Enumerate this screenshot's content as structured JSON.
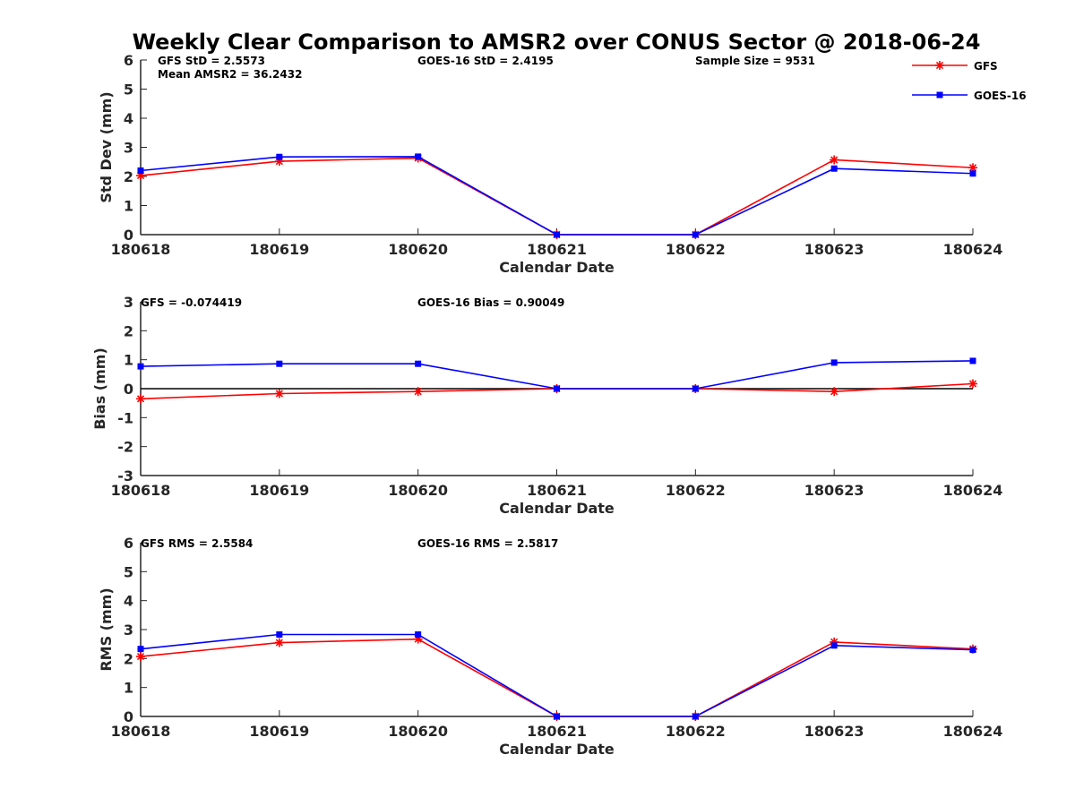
{
  "figure": {
    "title": "Weekly Clear Comparison to AMSR2 over CONUS Sector @ 2018-06-24"
  },
  "legend": {
    "position": "top-right",
    "entries": [
      {
        "label": "GFS",
        "color": "#ff0000",
        "marker": "asterisk"
      },
      {
        "label": "GOES-16",
        "color": "#0000ff",
        "marker": "square"
      }
    ]
  },
  "chart_data": [
    {
      "type": "line",
      "xlabel": "Calendar Date",
      "ylabel": "Std Dev (mm)",
      "ylim": [
        0,
        6
      ],
      "yticks": [
        0,
        1,
        2,
        3,
        4,
        5,
        6
      ],
      "categories": [
        "180618",
        "180619",
        "180620",
        "180621",
        "180622",
        "180623",
        "180624"
      ],
      "series": [
        {
          "name": "GFS",
          "color": "#ff0000",
          "marker": "asterisk",
          "values": [
            2.03,
            2.52,
            2.63,
            0,
            0,
            2.57,
            2.3
          ]
        },
        {
          "name": "GOES-16",
          "color": "#0000ff",
          "marker": "square",
          "values": [
            2.2,
            2.67,
            2.68,
            0,
            0,
            2.27,
            2.1
          ]
        }
      ],
      "annotations": [
        "GFS StD = 2.5573",
        "Mean AMSR2 = 36.2432",
        "GOES-16 StD = 2.4195",
        "Sample Size = 9531"
      ]
    },
    {
      "type": "line",
      "xlabel": "Calendar Date",
      "ylabel": "Bias (mm)",
      "ylim": [
        -3,
        3
      ],
      "yticks": [
        -3,
        -2,
        -1,
        0,
        1,
        2,
        3
      ],
      "zero_line": true,
      "categories": [
        "180618",
        "180619",
        "180620",
        "180621",
        "180622",
        "180623",
        "180624"
      ],
      "series": [
        {
          "name": "GFS",
          "color": "#ff0000",
          "marker": "asterisk",
          "values": [
            -0.35,
            -0.17,
            -0.1,
            0,
            0,
            -0.1,
            0.17
          ]
        },
        {
          "name": "GOES-16",
          "color": "#0000ff",
          "marker": "square",
          "values": [
            0.77,
            0.86,
            0.86,
            0,
            0,
            0.9,
            0.96
          ]
        }
      ],
      "annotations": [
        "GFS = -0.074419",
        "GOES-16 Bias  = 0.90049"
      ]
    },
    {
      "type": "line",
      "xlabel": "Calendar Date",
      "ylabel": "RMS (mm)",
      "ylim": [
        0,
        6
      ],
      "yticks": [
        0,
        1,
        2,
        3,
        4,
        5,
        6
      ],
      "categories": [
        "180618",
        "180619",
        "180620",
        "180621",
        "180622",
        "180623",
        "180624"
      ],
      "series": [
        {
          "name": "GFS",
          "color": "#ff0000",
          "marker": "asterisk",
          "values": [
            2.07,
            2.55,
            2.67,
            0,
            0,
            2.57,
            2.33
          ]
        },
        {
          "name": "GOES-16",
          "color": "#0000ff",
          "marker": "square",
          "values": [
            2.33,
            2.83,
            2.83,
            0,
            0,
            2.45,
            2.3
          ]
        }
      ],
      "annotations": [
        "GFS RMS = 2.5584",
        "GOES-16 RMS = 2.5817"
      ]
    }
  ]
}
